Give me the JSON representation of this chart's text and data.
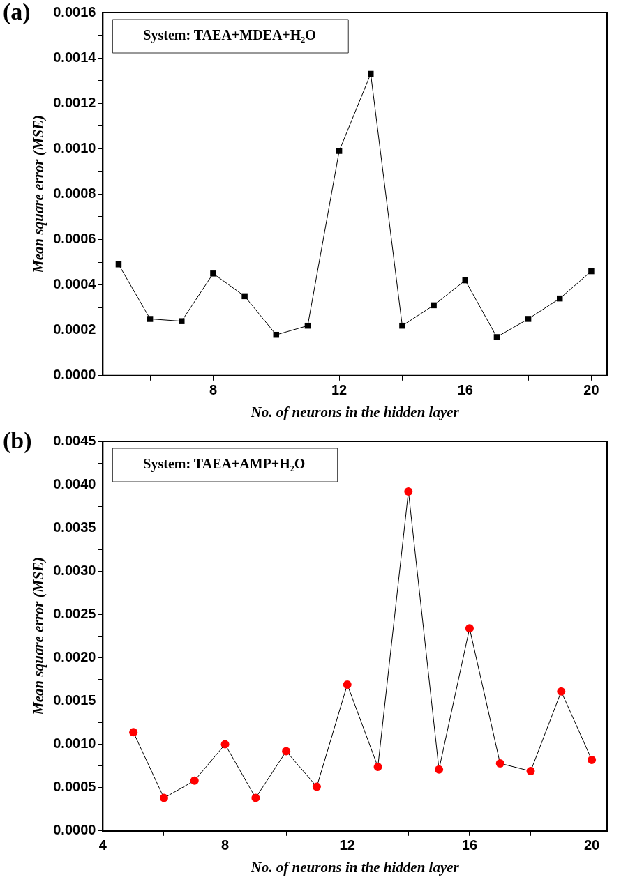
{
  "chart_data": [
    {
      "type": "line",
      "title": "(a)",
      "xlabel": "No. of neurons in the hidden layer",
      "ylabel": "Mean square error (MSE)",
      "annotations": [
        "System: TAEA+MDEA+H₂O"
      ],
      "x": [
        5,
        6,
        7,
        8,
        9,
        10,
        11,
        12,
        13,
        14,
        15,
        16,
        17,
        18,
        19,
        20
      ],
      "series": [
        {
          "color": "#000000",
          "values": [
            0.00049,
            0.00025,
            0.00024,
            0.00045,
            0.00035,
            0.00018,
            0.00022,
            0.00099,
            0.00133,
            0.00022,
            0.00031,
            0.00042,
            0.00017,
            0.00025,
            0.00034,
            0.00046
          ]
        }
      ],
      "xlim": [
        4.5,
        20.5
      ],
      "xticks": [
        {
          "value": 6,
          "label": null
        },
        8,
        {
          "value": 10,
          "label": null
        },
        12,
        {
          "value": 14,
          "label": null
        },
        16,
        {
          "value": 18,
          "label": null
        },
        20
      ],
      "ylim": [
        0,
        0.0016
      ],
      "yticks": [
        {
          "value": 0,
          "label": "0.0000"
        },
        {
          "value": 0.0001,
          "label": null
        },
        {
          "value": 0.0002,
          "label": "0.0002"
        },
        {
          "value": 0.0003,
          "label": null
        },
        {
          "value": 0.0004,
          "label": "0.0004"
        },
        {
          "value": 0.0005,
          "label": null
        },
        {
          "value": 0.0006,
          "label": "0.0006"
        },
        {
          "value": 0.0007,
          "label": null
        },
        {
          "value": 0.0008,
          "label": "0.0008"
        },
        {
          "value": 0.0009,
          "label": null
        },
        {
          "value": 0.001,
          "label": "0.0010"
        },
        {
          "value": 0.0011,
          "label": null
        },
        {
          "value": 0.0012,
          "label": "0.0012"
        },
        {
          "value": 0.0013,
          "label": null
        },
        {
          "value": 0.0014,
          "label": "0.0014"
        },
        {
          "value": 0.0015,
          "label": null
        },
        {
          "value": 0.0016,
          "label": "0.0016"
        }
      ],
      "grid": false,
      "legend": false,
      "marker": "square",
      "line_style": "solid"
    },
    {
      "type": "line",
      "title": "(b)",
      "xlabel": "No. of neurons in the hidden layer",
      "ylabel": "Mean square error (MSE)",
      "annotations": [
        "System: TAEA+AMP+H₂O"
      ],
      "x": [
        5,
        6,
        7,
        8,
        9,
        10,
        11,
        12,
        13,
        14,
        15,
        16,
        17,
        18,
        19,
        20
      ],
      "series": [
        {
          "color": "#ff0000",
          "values": [
            0.00114,
            0.00038,
            0.00058,
            0.001,
            0.00038,
            0.00092,
            0.00051,
            0.00169,
            0.00074,
            0.00392,
            0.00071,
            0.00234,
            0.00078,
            0.00069,
            0.00161,
            0.00082
          ]
        }
      ],
      "xlim": [
        4,
        20.5
      ],
      "xticks": [
        4,
        {
          "value": 6,
          "label": null
        },
        8,
        {
          "value": 10,
          "label": null
        },
        12,
        {
          "value": 14,
          "label": null
        },
        16,
        {
          "value": 18,
          "label": null
        },
        20
      ],
      "ylim": [
        0,
        0.0045
      ],
      "yticks": [
        {
          "value": 0,
          "label": "0.0000"
        },
        {
          "value": 0.00025,
          "label": null
        },
        {
          "value": 0.0005,
          "label": "0.0005"
        },
        {
          "value": 0.00075,
          "label": null
        },
        {
          "value": 0.001,
          "label": "0.0010"
        },
        {
          "value": 0.00125,
          "label": null
        },
        {
          "value": 0.0015,
          "label": "0.0015"
        },
        {
          "value": 0.00175,
          "label": null
        },
        {
          "value": 0.002,
          "label": "0.0020"
        },
        {
          "value": 0.00225,
          "label": null
        },
        {
          "value": 0.0025,
          "label": "0.0025"
        },
        {
          "value": 0.00275,
          "label": null
        },
        {
          "value": 0.003,
          "label": "0.0030"
        },
        {
          "value": 0.00325,
          "label": null
        },
        {
          "value": 0.0035,
          "label": "0.0035"
        },
        {
          "value": 0.00375,
          "label": null
        },
        {
          "value": 0.004,
          "label": "0.0040"
        },
        {
          "value": 0.00425,
          "label": null
        },
        {
          "value": 0.0045,
          "label": "0.0045"
        }
      ],
      "grid": false,
      "legend": false,
      "marker": "circle",
      "line_style": "solid"
    }
  ]
}
